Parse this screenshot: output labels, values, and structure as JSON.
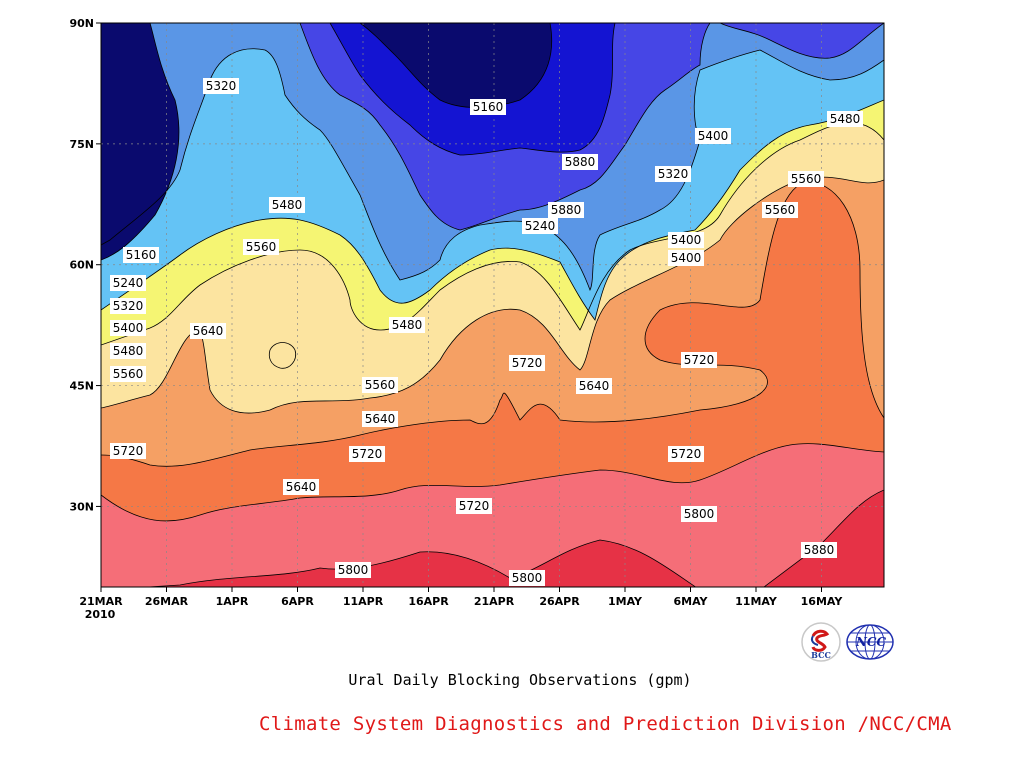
{
  "chart_data": {
    "type": "contour",
    "title": "Ural Daily Blocking Observations (gpm)",
    "y_axis": {
      "ticks": [
        "90N",
        "75N",
        "60N",
        "45N",
        "30N"
      ],
      "range": [
        20,
        90
      ],
      "units": "degrees N"
    },
    "x_axis": {
      "ticks": [
        "21MAR",
        "26MAR",
        "1APR",
        "6APR",
        "11APR",
        "16APR",
        "21APR",
        "26APR",
        "1MAY",
        "6MAY",
        "11MAY",
        "16MAY"
      ],
      "year_label": "2010",
      "range": [
        "2010-03-21",
        "2010-05-20"
      ]
    },
    "contour_levels": [
      5160,
      5240,
      5320,
      5400,
      5480,
      5560,
      5640,
      5720,
      5800,
      5880
    ],
    "contour_labels": [
      {
        "value": "5320"
      },
      {
        "value": "5160"
      },
      {
        "value": "5160"
      },
      {
        "value": "5240"
      },
      {
        "value": "5320"
      },
      {
        "value": "5400"
      },
      {
        "value": "5480"
      },
      {
        "value": "5560"
      },
      {
        "value": "5480"
      },
      {
        "value": "5560"
      },
      {
        "value": "5640"
      },
      {
        "value": "5480"
      },
      {
        "value": "5560"
      },
      {
        "value": "5640"
      },
      {
        "value": "5720"
      },
      {
        "value": "5720"
      },
      {
        "value": "5640"
      },
      {
        "value": "5720"
      },
      {
        "value": "5800"
      },
      {
        "value": "5800"
      },
      {
        "value": "5880"
      },
      {
        "value": "5880"
      },
      {
        "value": "5240"
      },
      {
        "value": "5320"
      },
      {
        "value": "5400"
      },
      {
        "value": "5400"
      },
      {
        "value": "5400"
      },
      {
        "value": "5480"
      },
      {
        "value": "5560"
      },
      {
        "value": "5560"
      },
      {
        "value": "5640"
      },
      {
        "value": "5720"
      },
      {
        "value": "5720"
      },
      {
        "value": "5720"
      },
      {
        "value": "5800"
      },
      {
        "value": "5880"
      }
    ],
    "grid": "dotted",
    "colors": {
      "c1": "#0a0a6e",
      "c2": "#1414d2",
      "c3": "#4646e6",
      "c4": "#5a96e6",
      "c5": "#64c3f5",
      "c6": "#f5f573",
      "c7": "#fce4a0",
      "c8": "#f5a064",
      "c9": "#f57846",
      "c10": "#f56e78",
      "c11": "#e63246"
    }
  },
  "footer": {
    "caption": "Ural Daily Blocking Observations (gpm)",
    "credit": "Climate System Diagnostics and Prediction Division /NCC/CMA",
    "logo_left": "BCC",
    "logo_right": "NCC"
  }
}
